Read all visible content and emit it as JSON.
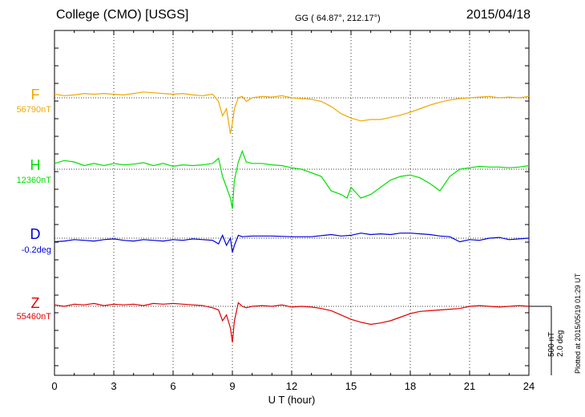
{
  "header": {
    "station": "College (CMO)  [USGS]",
    "coords": "GG ( 64.87°, 212.17°)",
    "date": "2015/04/18"
  },
  "scale": {
    "nt": "500 nT",
    "deg": "2.0 deg"
  },
  "plotted_note": "Plotted at 2015/05/19 01:29 UT",
  "colors": {
    "F": "#f0a800",
    "H": "#00e000",
    "D": "#0000e0",
    "Z": "#e00000"
  },
  "chart_data": {
    "type": "line",
    "title": "",
    "xlabel": "U T (hour)",
    "ylabel": "",
    "xlim": [
      0,
      24
    ],
    "x_ticks": [
      "0",
      "3",
      "6",
      "9",
      "12",
      "15",
      "18",
      "21",
      "24"
    ],
    "grid": true,
    "units_per_plot": 2.6,
    "series": [
      {
        "name": "F",
        "baseline_label": "56790nT",
        "baseline": 0,
        "x": [
          0,
          0.5,
          1,
          1.5,
          2,
          2.5,
          3,
          3.5,
          4,
          4.5,
          5,
          5.5,
          6,
          6.5,
          7,
          7.5,
          8,
          8.3,
          8.5,
          8.7,
          8.9,
          9.0,
          9.1,
          9.3,
          9.5,
          9.7,
          10,
          10.5,
          11,
          11.5,
          12,
          12.5,
          13,
          13.5,
          14,
          14.5,
          15,
          15.5,
          16,
          16.5,
          17,
          17.5,
          18,
          18.5,
          19,
          19.5,
          20,
          20.5,
          21,
          21.5,
          22,
          22.5,
          23,
          23.5,
          24
        ],
        "values": [
          0.05,
          0.03,
          0.04,
          0.06,
          0.05,
          0.06,
          0.05,
          0.04,
          0.06,
          0.08,
          0.07,
          0.06,
          0.05,
          0.06,
          0.04,
          0.03,
          0.05,
          -0.05,
          -0.25,
          -0.15,
          -0.5,
          -0.35,
          -0.15,
          0.0,
          0.02,
          -0.05,
          0.0,
          0.02,
          0.01,
          0.03,
          0.0,
          -0.01,
          -0.02,
          -0.05,
          -0.12,
          -0.22,
          -0.28,
          -0.32,
          -0.3,
          -0.3,
          -0.27,
          -0.24,
          -0.2,
          -0.15,
          -0.1,
          -0.06,
          -0.03,
          -0.01,
          0.0,
          0.01,
          0.02,
          0.0,
          0.01,
          0.0,
          0.02
        ]
      },
      {
        "name": "H",
        "baseline_label": "12360nT",
        "baseline": 0,
        "x": [
          0,
          0.5,
          1,
          1.5,
          2,
          2.5,
          3,
          3.5,
          4,
          4.5,
          5,
          5.5,
          6,
          6.5,
          7,
          7.5,
          8,
          8.3,
          8.5,
          8.7,
          8.9,
          9.0,
          9.1,
          9.3,
          9.5,
          9.7,
          10,
          10.5,
          11,
          11.5,
          12,
          12.5,
          13,
          13.5,
          14,
          14.5,
          14.8,
          15,
          15.5,
          16,
          16.5,
          17,
          17.5,
          18,
          18.5,
          19,
          19.5,
          20,
          20.5,
          21,
          21.5,
          22,
          22.5,
          23,
          23.5,
          24
        ],
        "values": [
          0.08,
          0.12,
          0.1,
          0.05,
          0.08,
          0.05,
          0.08,
          0.06,
          0.07,
          0.09,
          0.05,
          0.08,
          0.04,
          0.06,
          0.05,
          0.06,
          0.08,
          0.15,
          -0.1,
          -0.25,
          -0.4,
          -0.55,
          -0.15,
          0.1,
          0.25,
          0.1,
          0.08,
          0.08,
          0.06,
          0.05,
          0.02,
          0.0,
          -0.05,
          -0.1,
          -0.3,
          -0.35,
          -0.4,
          -0.25,
          -0.4,
          -0.35,
          -0.25,
          -0.15,
          -0.1,
          -0.08,
          -0.12,
          -0.2,
          -0.3,
          -0.1,
          0.0,
          0.02,
          0.04,
          0.03,
          0.03,
          0.02,
          0.03,
          0.05
        ]
      },
      {
        "name": "D",
        "baseline_label": "-0.2deg",
        "baseline": 0,
        "x": [
          0,
          0.5,
          1,
          1.5,
          2,
          2.5,
          3,
          3.5,
          4,
          4.5,
          5,
          5.5,
          6,
          6.5,
          7,
          7.5,
          8,
          8.3,
          8.5,
          8.7,
          8.9,
          9.0,
          9.1,
          9.3,
          9.5,
          10,
          11,
          12,
          13,
          14,
          14.5,
          15,
          15.5,
          16,
          16.5,
          17,
          17.5,
          18,
          18.5,
          19,
          19.5,
          20,
          20.5,
          21,
          21.5,
          22,
          22.5,
          23,
          23.5,
          24
        ],
        "values": [
          -0.05,
          -0.04,
          -0.02,
          -0.03,
          -0.04,
          -0.02,
          -0.01,
          -0.03,
          -0.04,
          -0.02,
          -0.03,
          -0.04,
          -0.02,
          -0.03,
          -0.01,
          -0.02,
          -0.03,
          -0.08,
          0.04,
          -0.1,
          0.0,
          -0.2,
          -0.1,
          0.04,
          0.02,
          0.03,
          0.03,
          0.02,
          0.02,
          0.05,
          0.03,
          0.04,
          0.07,
          0.05,
          0.06,
          0.05,
          0.07,
          0.07,
          0.06,
          0.05,
          0.03,
          0.02,
          -0.05,
          -0.02,
          -0.03,
          0.0,
          0.01,
          -0.02,
          -0.01,
          0.0
        ]
      },
      {
        "name": "Z",
        "baseline_label": "55460nT",
        "baseline": 0,
        "x": [
          0,
          0.5,
          1,
          1.5,
          2,
          2.5,
          3,
          3.5,
          4,
          4.5,
          5,
          5.5,
          6,
          6.5,
          7,
          7.5,
          8,
          8.3,
          8.5,
          8.7,
          8.9,
          9.0,
          9.1,
          9.3,
          9.5,
          9.7,
          10,
          10.5,
          11,
          11.5,
          12,
          12.5,
          13,
          13.5,
          14,
          14.5,
          15,
          15.5,
          16,
          16.5,
          17,
          17.5,
          18,
          18.5,
          19,
          19.5,
          20,
          20.5,
          21,
          21.5,
          22,
          22.5,
          23,
          23.5,
          24
        ],
        "values": [
          0.02,
          0.0,
          0.03,
          0.02,
          0.04,
          0.01,
          0.03,
          0.02,
          0.03,
          0.01,
          0.04,
          0.03,
          0.04,
          0.03,
          0.02,
          0.01,
          -0.02,
          -0.05,
          -0.2,
          -0.12,
          -0.3,
          -0.5,
          -0.2,
          0.05,
          0.0,
          -0.02,
          0.0,
          0.01,
          0.0,
          0.02,
          -0.01,
          0.0,
          -0.01,
          -0.03,
          -0.06,
          -0.12,
          -0.18,
          -0.22,
          -0.25,
          -0.23,
          -0.2,
          -0.15,
          -0.1,
          -0.07,
          -0.06,
          -0.05,
          -0.04,
          -0.03,
          0.0,
          0.01,
          0.0,
          -0.01,
          0.0,
          0.01,
          0.0
        ]
      }
    ]
  }
}
